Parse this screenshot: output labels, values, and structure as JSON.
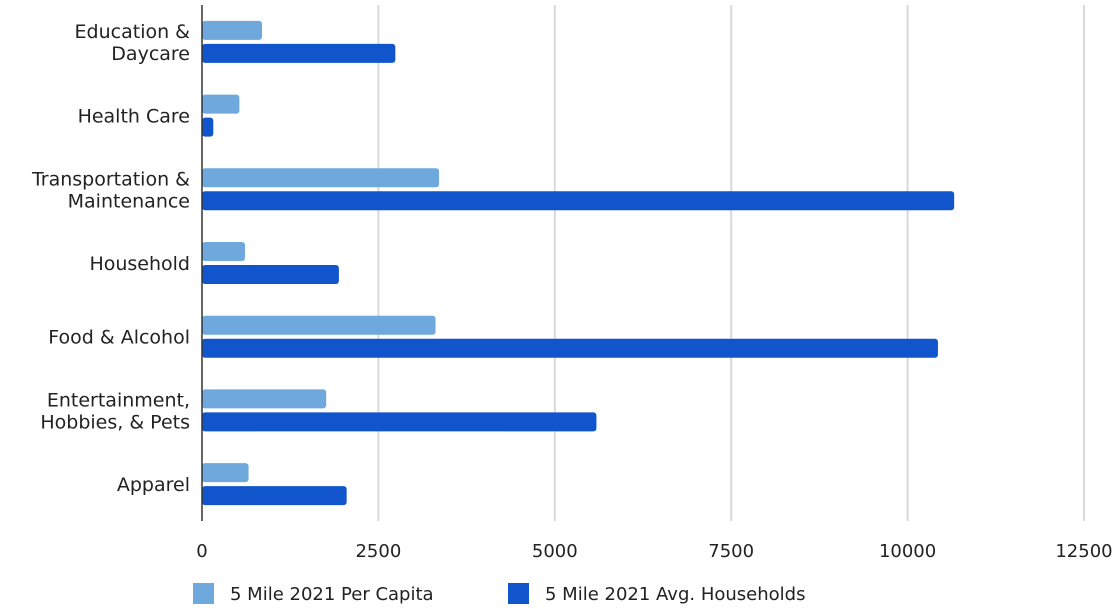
{
  "chart_data": {
    "type": "bar",
    "orientation": "horizontal",
    "categories": [
      [
        "Education &",
        "Daycare"
      ],
      [
        "Health Care"
      ],
      [
        "Transportation &",
        "Maintenance"
      ],
      [
        "Household"
      ],
      [
        "Food & Alcohol"
      ],
      [
        "Entertainment,",
        "Hobbies, & Pets"
      ],
      [
        "Apparel"
      ]
    ],
    "series": [
      {
        "name": "5 Mile 2021 Per Capita",
        "color": "#6fa8dc",
        "values": [
          850,
          530,
          3360,
          610,
          3310,
          1760,
          660
        ]
      },
      {
        "name": "5 Mile 2021 Avg. Households",
        "color": "#1155cc",
        "values": [
          2740,
          160,
          10660,
          1940,
          10430,
          5590,
          2050
        ]
      }
    ],
    "xlim": [
      0,
      12500
    ],
    "xticks": [
      "0",
      "2500",
      "5000",
      "7500",
      "10000",
      "12500"
    ],
    "grid": true,
    "legend_position": "bottom"
  }
}
